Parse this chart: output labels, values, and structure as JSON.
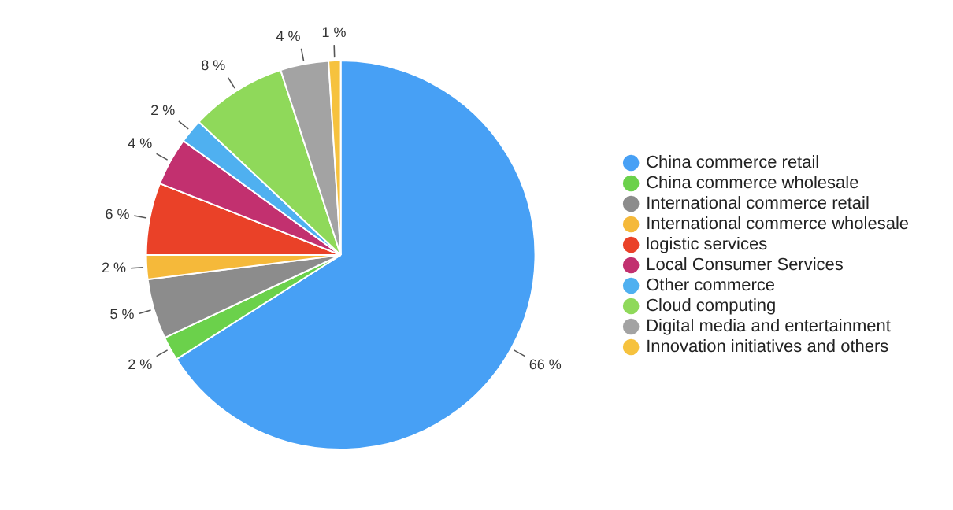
{
  "chart_data": {
    "type": "pie",
    "categories": [
      "China commerce retail",
      "China commerce wholesale",
      "International commerce retail",
      "International commerce wholesale",
      "logistic services",
      "Local Consumer Services",
      "Other commerce",
      "Cloud computing",
      "Digital media and entertainment",
      "Innovation initiatives and others"
    ],
    "values": [
      66,
      2,
      5,
      2,
      6,
      4,
      2,
      8,
      4,
      1
    ],
    "value_labels": [
      "66 %",
      "2 %",
      "5 %",
      "2 %",
      "6 %",
      "4 %",
      "2 %",
      "8 %",
      "4 %",
      "1 %"
    ],
    "colors": [
      "#47a0f5",
      "#6bd14b",
      "#8c8c8c",
      "#f5b93a",
      "#ea4128",
      "#c2306f",
      "#4fb0f0",
      "#8fd95a",
      "#a3a3a3",
      "#f6c23e"
    ],
    "legend": "right"
  }
}
